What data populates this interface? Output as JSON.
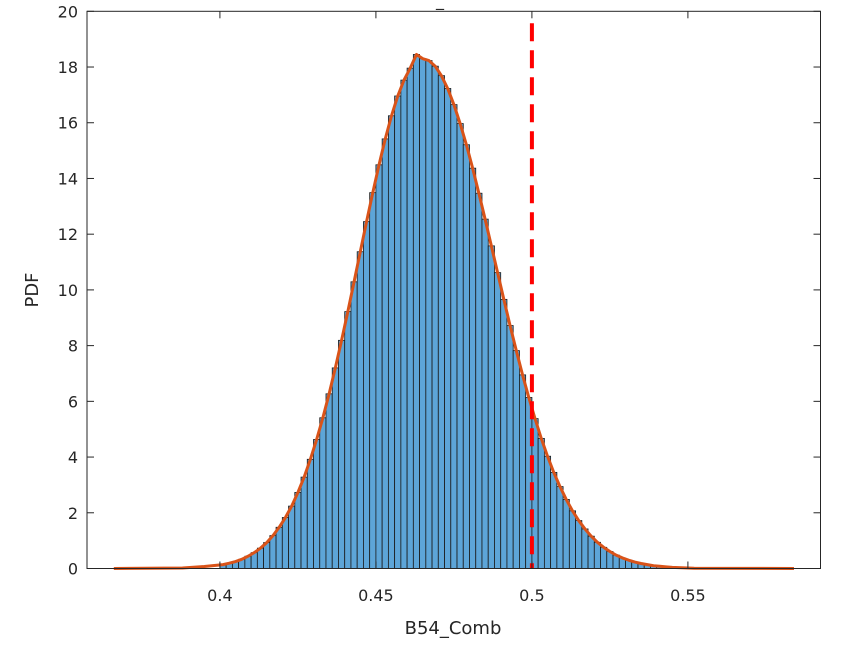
{
  "chart_data": {
    "type": "bar",
    "title": "_",
    "xlabel": "B54_Comb",
    "ylabel": "PDF",
    "xlim": [
      0.3574,
      0.5925
    ],
    "ylim": [
      0,
      20
    ],
    "xticks": [
      0.4,
      0.45,
      0.5,
      0.55
    ],
    "xtick_labels": [
      "0.4",
      "0.45",
      "0.5",
      "0.55"
    ],
    "yticks": [
      0,
      2,
      4,
      6,
      8,
      10,
      12,
      14,
      16,
      18,
      20
    ],
    "ytick_labels": [
      "0",
      "2",
      "4",
      "6",
      "8",
      "10",
      "12",
      "14",
      "16",
      "18",
      "20"
    ],
    "grid": false,
    "bin_width": 0.002,
    "bin_start": 0.4,
    "values": [
      0.14,
      0.19,
      0.25,
      0.33,
      0.44,
      0.57,
      0.73,
      0.93,
      1.18,
      1.48,
      1.83,
      2.24,
      2.73,
      3.28,
      3.92,
      4.63,
      5.41,
      6.27,
      7.2,
      8.19,
      9.22,
      10.29,
      11.37,
      12.45,
      13.49,
      14.49,
      15.42,
      16.25,
      16.96,
      17.53,
      17.96,
      18.45,
      18.3,
      18.23,
      18.03,
      17.69,
      17.23,
      16.65,
      15.97,
      15.21,
      14.37,
      13.47,
      12.54,
      11.58,
      10.62,
      9.66,
      8.72,
      7.82,
      6.95,
      6.14,
      5.38,
      4.67,
      4.03,
      3.45,
      2.94,
      2.48,
      2.07,
      1.72,
      1.42,
      1.16,
      0.94,
      0.76,
      0.61,
      0.48,
      0.38,
      0.3,
      0.23,
      0.18,
      0.14,
      0.1,
      0.08,
      0.06,
      0.04
    ],
    "fit_curve": {
      "x_range": [
        0.366,
        0.584
      ]
    },
    "reference_line": {
      "x": 0.5,
      "style": "dashed"
    },
    "colors": {
      "bars": "#5DA5D8",
      "bar_edge": "#1a1a1a",
      "fit": "#D95319",
      "reference": "#FF0000",
      "axes": "#262626"
    }
  }
}
